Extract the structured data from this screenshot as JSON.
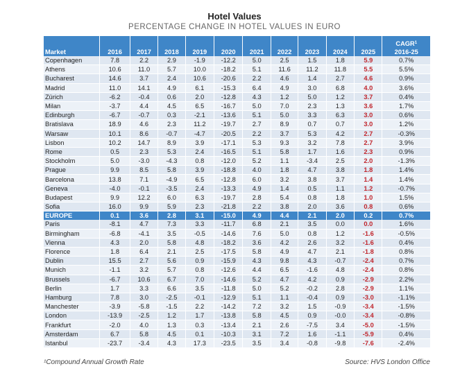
{
  "title": "Hotel Values",
  "subtitle": "PERCENTAGE CHANGE IN HOTEL VALUES IN EURO",
  "headers": {
    "market": "Market",
    "years": [
      "2016",
      "2017",
      "2018",
      "2019",
      "2020",
      "2021",
      "2022",
      "2023",
      "2024",
      "2025"
    ],
    "cagr_line1": "CAGR",
    "cagr_sup": "1",
    "cagr_line2": "2016-25"
  },
  "rows": [
    {
      "market": "Copenhagen",
      "values": [
        "7.8",
        "2.2",
        "2.9",
        "-1.9",
        "-12.2",
        "5.0",
        "2.5",
        "1.5",
        "1.8",
        "5.9"
      ],
      "cagr": "0.7%"
    },
    {
      "market": "Athens",
      "values": [
        "10.6",
        "11.0",
        "5.7",
        "10.0",
        "-18.2",
        "5.1",
        "11.6",
        "11.2",
        "11.8",
        "5.5"
      ],
      "cagr": "5.5%"
    },
    {
      "market": "Bucharest",
      "values": [
        "14.6",
        "3.7",
        "2.4",
        "10.6",
        "-20.6",
        "2.2",
        "4.6",
        "1.4",
        "2.7",
        "4.6"
      ],
      "cagr": "0.9%"
    },
    {
      "market": "Madrid",
      "values": [
        "11.0",
        "14.1",
        "4.9",
        "6.1",
        "-15.3",
        "6.4",
        "4.9",
        "3.0",
        "6.8",
        "4.0"
      ],
      "cagr": "3.6%"
    },
    {
      "market": "Zürich",
      "values": [
        "-6.2",
        "-0.4",
        "0.6",
        "2.0",
        "-12.8",
        "4.3",
        "1.2",
        "5.0",
        "1.2",
        "3.7"
      ],
      "cagr": "0.4%"
    },
    {
      "market": "Milan",
      "values": [
        "-3.7",
        "4.4",
        "4.5",
        "6.5",
        "-16.7",
        "5.0",
        "7.0",
        "2.3",
        "1.3",
        "3.6"
      ],
      "cagr": "1.7%"
    },
    {
      "market": "Edinburgh",
      "values": [
        "-6.7",
        "-0.7",
        "0.3",
        "-2.1",
        "-13.6",
        "5.1",
        "5.0",
        "3.3",
        "6.3",
        "3.0"
      ],
      "cagr": "0.6%"
    },
    {
      "market": "Bratislava",
      "values": [
        "18.9",
        "4.6",
        "2.3",
        "11.2",
        "-19.7",
        "2.7",
        "8.9",
        "0.7",
        "0.7",
        "3.0"
      ],
      "cagr": "1.2%"
    },
    {
      "market": "Warsaw",
      "values": [
        "10.1",
        "8.6",
        "-0.7",
        "-4.7",
        "-20.5",
        "2.2",
        "3.7",
        "5.3",
        "4.2",
        "2.7"
      ],
      "cagr": "-0.3%"
    },
    {
      "market": "Lisbon",
      "values": [
        "10.2",
        "14.7",
        "8.9",
        "3.9",
        "-17.1",
        "5.3",
        "9.3",
        "3.2",
        "7.8",
        "2.7"
      ],
      "cagr": "3.9%"
    },
    {
      "market": "Rome",
      "values": [
        "0.5",
        "2.3",
        "5.3",
        "2.4",
        "-16.5",
        "5.1",
        "5.8",
        "1.7",
        "1.6",
        "2.3"
      ],
      "cagr": "0.9%"
    },
    {
      "market": "Stockholm",
      "values": [
        "5.0",
        "-3.0",
        "-4.3",
        "0.8",
        "-12.0",
        "5.2",
        "1.1",
        "-3.4",
        "2.5",
        "2.0"
      ],
      "cagr": "-1.3%"
    },
    {
      "market": "Prague",
      "values": [
        "9.9",
        "8.5",
        "5.8",
        "3.9",
        "-18.8",
        "4.0",
        "1.8",
        "4.7",
        "3.8",
        "1.8"
      ],
      "cagr": "1.4%"
    },
    {
      "market": "Barcelona",
      "values": [
        "13.8",
        "7.1",
        "-4.9",
        "6.5",
        "-12.8",
        "6.0",
        "3.2",
        "3.8",
        "3.7",
        "1.4"
      ],
      "cagr": "1.4%"
    },
    {
      "market": "Geneva",
      "values": [
        "-4.0",
        "-0.1",
        "-3.5",
        "2.4",
        "-13.3",
        "4.9",
        "1.4",
        "0.5",
        "1.1",
        "1.2"
      ],
      "cagr": "-0.7%"
    },
    {
      "market": "Budapest",
      "values": [
        "9.9",
        "12.2",
        "6.0",
        "6.3",
        "-19.7",
        "2.8",
        "5.4",
        "0.8",
        "1.8",
        "1.0"
      ],
      "cagr": "1.5%"
    },
    {
      "market": "Sofia",
      "values": [
        "16.0",
        "9.9",
        "5.9",
        "2.3",
        "-21.8",
        "2.2",
        "3.8",
        "2.0",
        "3.6",
        "0.8"
      ],
      "cagr": "0.6%"
    },
    {
      "market": "EUROPE",
      "values": [
        "0.1",
        "3.6",
        "2.8",
        "3.1",
        "-15.0",
        "4.9",
        "4.4",
        "2.1",
        "2.0",
        "0.2"
      ],
      "cagr": "0.7%",
      "europe": true
    },
    {
      "market": "Paris",
      "values": [
        "-8.1",
        "4.7",
        "7.3",
        "3.3",
        "-11.7",
        "6.8",
        "2.1",
        "3.5",
        "0.0",
        "0.0"
      ],
      "cagr": "1.6%"
    },
    {
      "market": "Birmingham",
      "values": [
        "-6.8",
        "-4.1",
        "3.5",
        "-0.5",
        "-14.6",
        "7.6",
        "5.0",
        "0.8",
        "1.2",
        "-1.6"
      ],
      "cagr": "-0.5%"
    },
    {
      "market": "Vienna",
      "values": [
        "4.3",
        "2.0",
        "5.8",
        "4.8",
        "-18.2",
        "3.6",
        "4.2",
        "2.6",
        "3.2",
        "-1.6"
      ],
      "cagr": "0.4%"
    },
    {
      "market": "Florence",
      "values": [
        "1.8",
        "6.4",
        "2.1",
        "2.5",
        "-17.5",
        "5.8",
        "4.9",
        "4.7",
        "2.1",
        "-1.8"
      ],
      "cagr": "0.8%"
    },
    {
      "market": "Dublin",
      "values": [
        "15.5",
        "2.7",
        "5.6",
        "0.9",
        "-15.9",
        "4.3",
        "9.8",
        "4.3",
        "-0.7",
        "-2.4"
      ],
      "cagr": "0.7%"
    },
    {
      "market": "Munich",
      "values": [
        "-1.1",
        "3.2",
        "5.7",
        "0.8",
        "-12.6",
        "4.4",
        "6.5",
        "-1.6",
        "4.8",
        "-2.4"
      ],
      "cagr": "0.8%"
    },
    {
      "market": "Brussels",
      "values": [
        "-6.7",
        "10.6",
        "6.7",
        "7.0",
        "-14.6",
        "5.2",
        "4.7",
        "4.2",
        "0.9",
        "-2.9"
      ],
      "cagr": "2.2%"
    },
    {
      "market": "Berlin",
      "values": [
        "1.7",
        "3.3",
        "6.6",
        "3.5",
        "-11.8",
        "5.0",
        "5.2",
        "-0.2",
        "2.8",
        "-2.9"
      ],
      "cagr": "1.1%"
    },
    {
      "market": "Hamburg",
      "values": [
        "7.8",
        "3.0",
        "-2.5",
        "-0.1",
        "-12.9",
        "5.1",
        "1.1",
        "-0.4",
        "0.9",
        "-3.0"
      ],
      "cagr": "-1.1%"
    },
    {
      "market": "Manchester",
      "values": [
        "-3.9",
        "-5.8",
        "-1.5",
        "2.2",
        "-14.2",
        "7.2",
        "3.2",
        "1.5",
        "-0.9",
        "-3.4"
      ],
      "cagr": "-1.5%"
    },
    {
      "market": "London",
      "values": [
        "-13.9",
        "-2.5",
        "1.2",
        "1.7",
        "-13.8",
        "5.8",
        "4.5",
        "0.9",
        "-0.0",
        "-3.4"
      ],
      "cagr": "-0.8%"
    },
    {
      "market": "Frankfurt",
      "values": [
        "-2.0",
        "4.0",
        "1.3",
        "0.3",
        "-13.4",
        "2.1",
        "2.6",
        "-7.5",
        "3.4",
        "-5.0"
      ],
      "cagr": "-1.5%"
    },
    {
      "market": "Amsterdam",
      "values": [
        "6.7",
        "5.8",
        "4.5",
        "0.1",
        "-10.3",
        "3.1",
        "7.2",
        "1.6",
        "-1.1",
        "-5.9"
      ],
      "cagr": "0.4%"
    },
    {
      "market": "Istanbul",
      "values": [
        "-23.7",
        "-3.4",
        "4.3",
        "17.3",
        "-23.5",
        "3.5",
        "3.4",
        "-0.8",
        "-9.8",
        "-7.6"
      ],
      "cagr": "-2.4%"
    }
  ],
  "footnote": "¹Compound Annual Growth Rate",
  "source": "Source: HVS London Office",
  "colors": {
    "header_blue": "#3f86c8",
    "row_shade_a": "#dfe7f1",
    "row_shade_b": "#ecf1f7",
    "highlight_red": "#c0262d"
  }
}
